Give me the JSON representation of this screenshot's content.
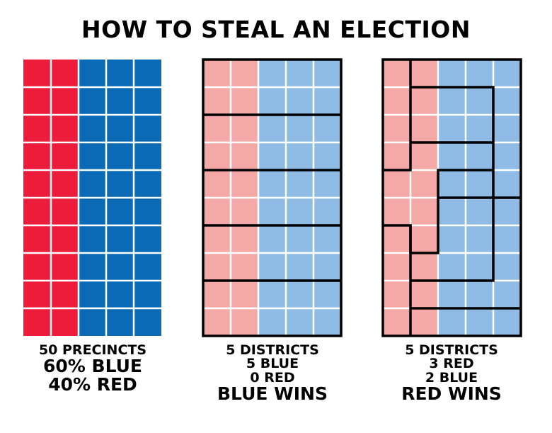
{
  "title": "HOW TO STEAL AN ELECTION",
  "colors": {
    "red_strong": "#ee1c3b",
    "blue_strong": "#0b6ab6",
    "red_light": "#f5a8a8",
    "blue_light": "#8fbbe4",
    "border": "#000000",
    "background": "#ffffff"
  },
  "precincts": {
    "columns": 5,
    "rows": 10,
    "red_columns": 2,
    "blue_columns": 3
  },
  "panels": {
    "original": {
      "lines": [
        "50 PRECINCTS",
        "60% BLUE",
        "40% RED"
      ]
    },
    "fair": {
      "lines": [
        "5 DISTRICTS",
        "5 BLUE",
        "0 RED",
        "BLUE WINS"
      ]
    },
    "gerrymandered": {
      "lines": [
        "5 DISTRICTS",
        "3 RED",
        "2 BLUE",
        "RED WINS"
      ]
    }
  }
}
